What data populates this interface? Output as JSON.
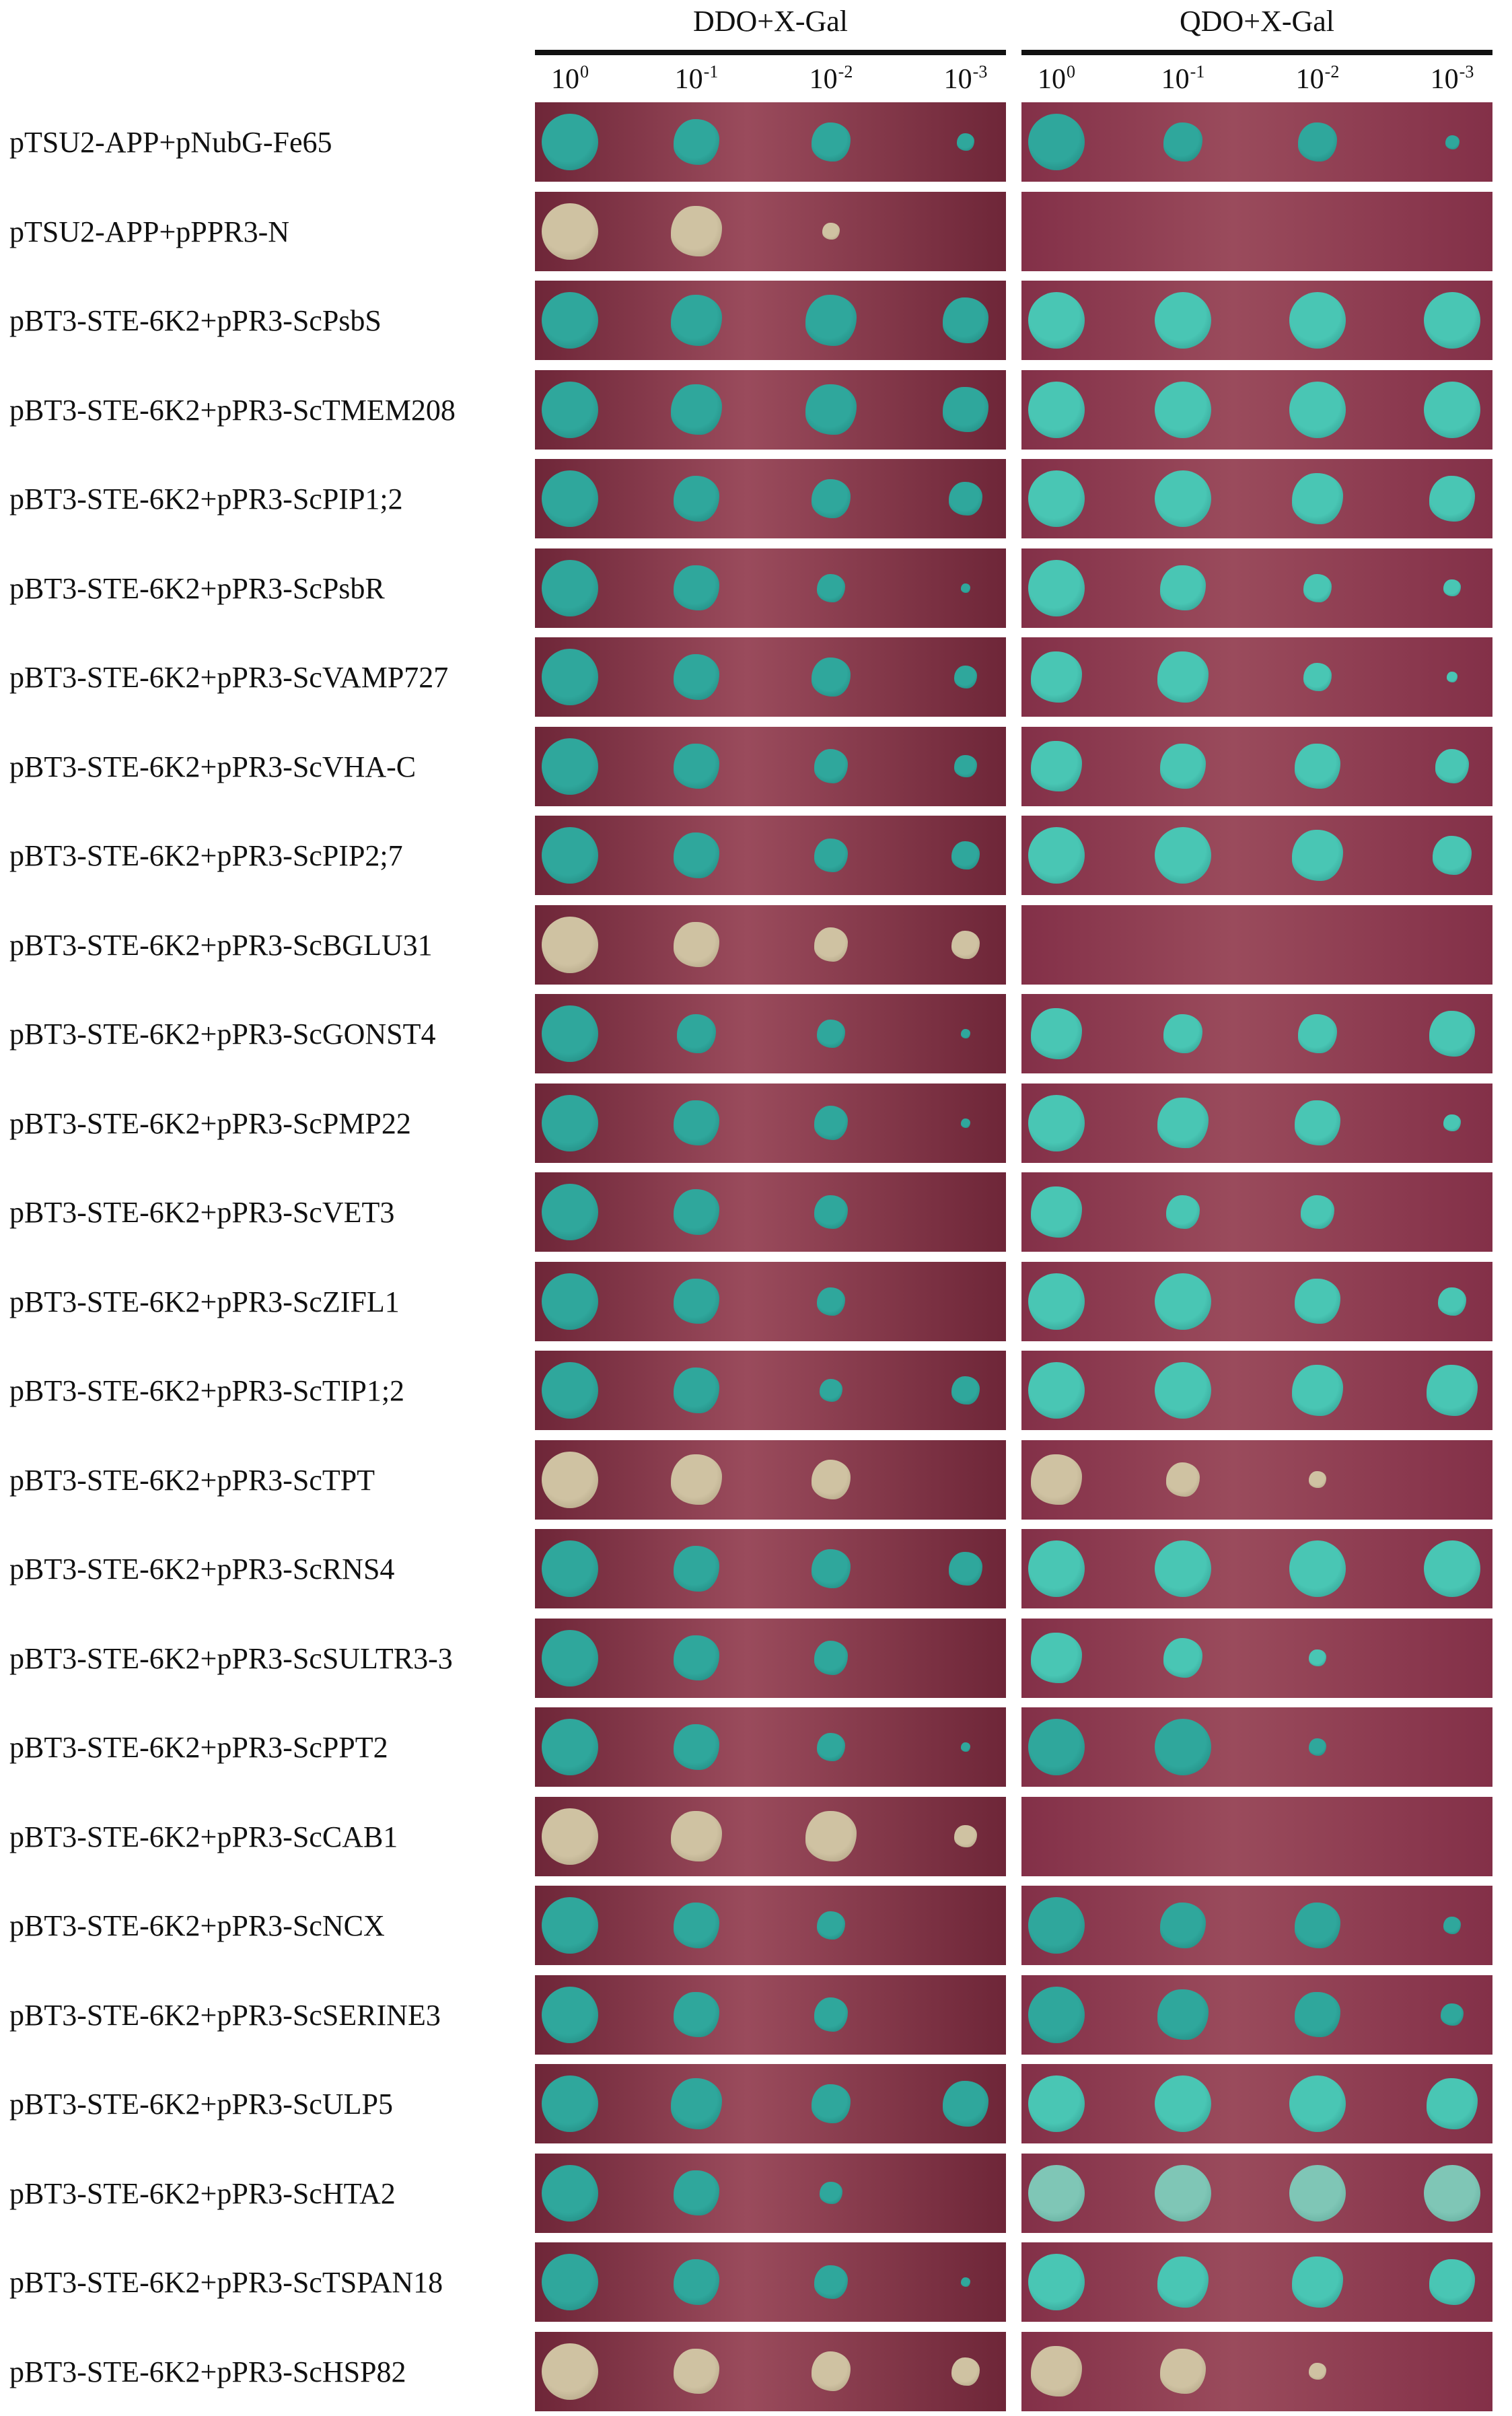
{
  "header": {
    "ddo_title": "DDO+X-Gal",
    "qdo_title": "QDO+X-Gal",
    "dilutions": [
      {
        "base": "10",
        "exp": "0"
      },
      {
        "base": "10",
        "exp": "-1"
      },
      {
        "base": "10",
        "exp": "-2"
      },
      {
        "base": "10",
        "exp": "-3"
      }
    ]
  },
  "colors": {
    "plate_ddo": "#6e2638",
    "plate_qdo": "#833048",
    "plate_light": "#9a4b5c",
    "blue_colony": "#2fa79c",
    "blue_colony_bright": "#49c6b4",
    "white_colony": "#cfc2a2"
  },
  "rows": [
    {
      "label": "pTSU2-APP+pNubG-Fe65",
      "ddo": {
        "color": "blue",
        "growth": [
          1,
          0.8,
          0.7,
          0.3
        ]
      },
      "qdo": {
        "color": "blue",
        "growth": [
          1,
          0.7,
          0.7,
          0.25
        ]
      }
    },
    {
      "label": "pTSU2-APP+pPPR3-N",
      "ddo": {
        "color": "white",
        "growth": [
          1,
          0.9,
          0.3,
          0
        ]
      },
      "qdo": {
        "color": "none",
        "growth": [
          0,
          0,
          0,
          0
        ]
      }
    },
    {
      "label": "pBT3-STE-6K2+pPR3-ScPsbS",
      "ddo": {
        "color": "blue",
        "growth": [
          1,
          0.9,
          0.9,
          0.8
        ]
      },
      "qdo": {
        "color": "blue-bright",
        "growth": [
          1,
          1,
          1,
          1
        ]
      }
    },
    {
      "label": "pBT3-STE-6K2+pPR3-ScTMEM208",
      "ddo": {
        "color": "blue",
        "growth": [
          1,
          0.9,
          0.9,
          0.8
        ]
      },
      "qdo": {
        "color": "blue-bright",
        "growth": [
          1,
          1,
          1,
          1
        ]
      }
    },
    {
      "label": "pBT3-STE-6K2+pPR3-ScPIP1;2",
      "ddo": {
        "color": "blue",
        "growth": [
          1,
          0.8,
          0.7,
          0.6
        ]
      },
      "qdo": {
        "color": "blue-bright",
        "growth": [
          1,
          1,
          0.9,
          0.8
        ]
      }
    },
    {
      "label": "pBT3-STE-6K2+pPR3-ScPsbR",
      "ddo": {
        "color": "blue",
        "growth": [
          1,
          0.8,
          0.5,
          0.1
        ]
      },
      "qdo": {
        "color": "blue-bright",
        "growth": [
          1,
          0.8,
          0.5,
          0.3
        ]
      }
    },
    {
      "label": "pBT3-STE-6K2+pPR3-ScVAMP727",
      "ddo": {
        "color": "blue",
        "growth": [
          1,
          0.8,
          0.7,
          0.4
        ]
      },
      "qdo": {
        "color": "blue-bright",
        "growth": [
          0.9,
          0.9,
          0.5,
          0.2
        ]
      }
    },
    {
      "label": "pBT3-STE-6K2+pPR3-ScVHA-C",
      "ddo": {
        "color": "blue",
        "growth": [
          1,
          0.8,
          0.6,
          0.4
        ]
      },
      "qdo": {
        "color": "blue-bright",
        "growth": [
          0.9,
          0.8,
          0.8,
          0.6
        ]
      }
    },
    {
      "label": "pBT3-STE-6K2+pPR3-ScPIP2;7",
      "ddo": {
        "color": "blue",
        "growth": [
          1,
          0.8,
          0.6,
          0.5
        ]
      },
      "qdo": {
        "color": "blue-bright",
        "growth": [
          1,
          1,
          0.9,
          0.7
        ]
      }
    },
    {
      "label": "pBT3-STE-6K2+pPR3-ScBGLU31",
      "ddo": {
        "color": "white",
        "growth": [
          1,
          0.8,
          0.6,
          0.5
        ]
      },
      "qdo": {
        "color": "none",
        "growth": [
          0,
          0,
          0,
          0
        ]
      }
    },
    {
      "label": "pBT3-STE-6K2+pPR3-ScGONST4",
      "ddo": {
        "color": "blue",
        "growth": [
          1,
          0.7,
          0.5,
          0.1
        ]
      },
      "qdo": {
        "color": "blue-bright",
        "growth": [
          0.9,
          0.7,
          0.7,
          0.8
        ]
      }
    },
    {
      "label": "pBT3-STE-6K2+pPR3-ScPMP22",
      "ddo": {
        "color": "blue",
        "growth": [
          1,
          0.8,
          0.6,
          0.1
        ]
      },
      "qdo": {
        "color": "blue-bright",
        "growth": [
          1,
          0.9,
          0.8,
          0.3
        ]
      }
    },
    {
      "label": "pBT3-STE-6K2+pPR3-ScVET3",
      "ddo": {
        "color": "blue",
        "growth": [
          1,
          0.8,
          0.6,
          0
        ]
      },
      "qdo": {
        "color": "blue-bright",
        "growth": [
          0.9,
          0.6,
          0.6,
          0
        ]
      }
    },
    {
      "label": "pBT3-STE-6K2+pPR3-ScZIFL1",
      "ddo": {
        "color": "blue",
        "growth": [
          1,
          0.8,
          0.5,
          0
        ]
      },
      "qdo": {
        "color": "blue-bright",
        "growth": [
          1,
          1,
          0.8,
          0.5
        ]
      }
    },
    {
      "label": "pBT3-STE-6K2+pPR3-ScTIP1;2",
      "ddo": {
        "color": "blue",
        "growth": [
          1,
          0.8,
          0.4,
          0.5
        ]
      },
      "qdo": {
        "color": "blue-bright",
        "growth": [
          1,
          1,
          0.9,
          0.9
        ]
      }
    },
    {
      "label": "pBT3-STE-6K2+pPR3-ScTPT",
      "ddo": {
        "color": "white",
        "growth": [
          1,
          0.9,
          0.7,
          0
        ]
      },
      "qdo": {
        "color": "white",
        "growth": [
          0.9,
          0.6,
          0.3,
          0
        ]
      }
    },
    {
      "label": "pBT3-STE-6K2+pPR3-ScRNS4",
      "ddo": {
        "color": "blue",
        "growth": [
          1,
          0.8,
          0.7,
          0.6
        ]
      },
      "qdo": {
        "color": "blue-bright",
        "growth": [
          1,
          1,
          1,
          1
        ]
      }
    },
    {
      "label": "pBT3-STE-6K2+pPR3-ScSULTR3-3",
      "ddo": {
        "color": "blue",
        "growth": [
          1,
          0.8,
          0.6,
          0
        ]
      },
      "qdo": {
        "color": "blue-bright",
        "growth": [
          0.9,
          0.7,
          0.3,
          0
        ]
      }
    },
    {
      "label": "pBT3-STE-6K2+pPR3-ScPPT2",
      "ddo": {
        "color": "blue",
        "growth": [
          1,
          0.8,
          0.5,
          0.1
        ]
      },
      "qdo": {
        "color": "blue",
        "growth": [
          1,
          1,
          0.3,
          0
        ]
      }
    },
    {
      "label": "pBT3-STE-6K2+pPR3-ScCAB1",
      "ddo": {
        "color": "white",
        "growth": [
          1,
          0.9,
          0.9,
          0.4
        ]
      },
      "qdo": {
        "color": "none",
        "growth": [
          0,
          0,
          0,
          0
        ]
      }
    },
    {
      "label": "pBT3-STE-6K2+pPR3-ScNCX",
      "ddo": {
        "color": "blue",
        "growth": [
          1,
          0.8,
          0.5,
          0
        ]
      },
      "qdo": {
        "color": "blue",
        "growth": [
          1,
          0.8,
          0.8,
          0.3
        ]
      }
    },
    {
      "label": "pBT3-STE-6K2+pPR3-ScSERINE3",
      "ddo": {
        "color": "blue",
        "growth": [
          1,
          0.8,
          0.6,
          0
        ]
      },
      "qdo": {
        "color": "blue",
        "growth": [
          1,
          0.9,
          0.8,
          0.4
        ]
      }
    },
    {
      "label": "pBT3-STE-6K2+pPR3-ScULP5",
      "ddo": {
        "color": "blue",
        "growth": [
          1,
          0.9,
          0.7,
          0.8
        ]
      },
      "qdo": {
        "color": "blue-bright",
        "growth": [
          1,
          1,
          1,
          0.9
        ]
      }
    },
    {
      "label": "pBT3-STE-6K2+pPR3-ScHTA2",
      "ddo": {
        "color": "blue",
        "growth": [
          1,
          0.8,
          0.4,
          0
        ]
      },
      "qdo": {
        "color": "blue-pale",
        "growth": [
          1,
          1,
          1,
          1
        ]
      }
    },
    {
      "label": "pBT3-STE-6K2+pPR3-ScTSPAN18",
      "ddo": {
        "color": "blue",
        "growth": [
          1,
          0.8,
          0.6,
          0.1
        ]
      },
      "qdo": {
        "color": "blue-bright",
        "growth": [
          1,
          0.9,
          0.9,
          0.8
        ]
      }
    },
    {
      "label": "pBT3-STE-6K2+pPR3-ScHSP82",
      "ddo": {
        "color": "white",
        "growth": [
          1,
          0.8,
          0.7,
          0.5
        ]
      },
      "qdo": {
        "color": "white",
        "growth": [
          0.9,
          0.8,
          0.3,
          0
        ]
      }
    }
  ]
}
